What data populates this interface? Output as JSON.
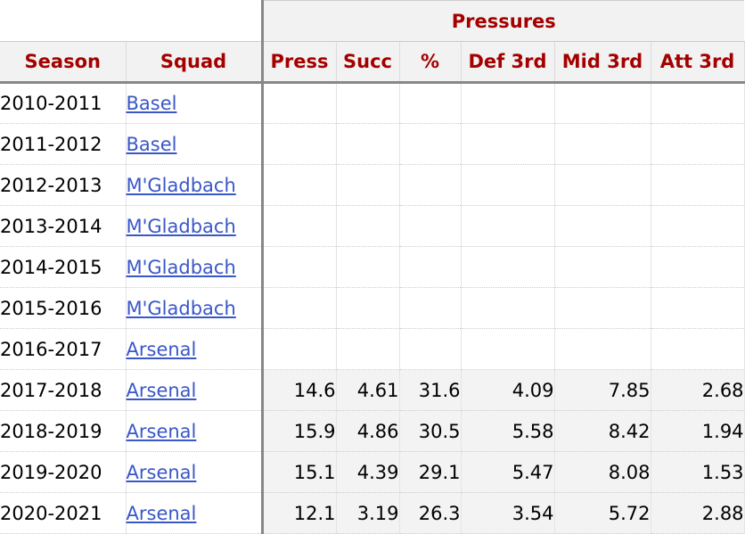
{
  "group_header": "Pressures",
  "columns": {
    "season": "Season",
    "squad": "Squad",
    "press": "Press",
    "succ": "Succ",
    "pct": "%",
    "def3": "Def 3rd",
    "mid3": "Mid 3rd",
    "att3": "Att 3rd"
  },
  "rows": [
    {
      "season": "2010-2011",
      "squad": "Basel",
      "press": "",
      "succ": "",
      "pct": "",
      "def3": "",
      "mid3": "",
      "att3": ""
    },
    {
      "season": "2011-2012",
      "squad": "Basel",
      "press": "",
      "succ": "",
      "pct": "",
      "def3": "",
      "mid3": "",
      "att3": ""
    },
    {
      "season": "2012-2013",
      "squad": "M'Gladbach",
      "press": "",
      "succ": "",
      "pct": "",
      "def3": "",
      "mid3": "",
      "att3": ""
    },
    {
      "season": "2013-2014",
      "squad": "M'Gladbach",
      "press": "",
      "succ": "",
      "pct": "",
      "def3": "",
      "mid3": "",
      "att3": ""
    },
    {
      "season": "2014-2015",
      "squad": "M'Gladbach",
      "press": "",
      "succ": "",
      "pct": "",
      "def3": "",
      "mid3": "",
      "att3": ""
    },
    {
      "season": "2015-2016",
      "squad": "M'Gladbach",
      "press": "",
      "succ": "",
      "pct": "",
      "def3": "",
      "mid3": "",
      "att3": ""
    },
    {
      "season": "2016-2017",
      "squad": "Arsenal",
      "press": "",
      "succ": "",
      "pct": "",
      "def3": "",
      "mid3": "",
      "att3": ""
    },
    {
      "season": "2017-2018",
      "squad": "Arsenal",
      "press": "14.6",
      "succ": "4.61",
      "pct": "31.6",
      "def3": "4.09",
      "mid3": "7.85",
      "att3": "2.68"
    },
    {
      "season": "2018-2019",
      "squad": "Arsenal",
      "press": "15.9",
      "succ": "4.86",
      "pct": "30.5",
      "def3": "5.58",
      "mid3": "8.42",
      "att3": "1.94"
    },
    {
      "season": "2019-2020",
      "squad": "Arsenal",
      "press": "15.1",
      "succ": "4.39",
      "pct": "29.1",
      "def3": "5.47",
      "mid3": "8.08",
      "att3": "1.53"
    },
    {
      "season": "2020-2021",
      "squad": "Arsenal",
      "press": "12.1",
      "succ": "3.19",
      "pct": "26.3",
      "def3": "3.54",
      "mid3": "5.72",
      "att3": "2.88"
    }
  ],
  "colors": {
    "header_text": "#a50000",
    "link": "#3957c8",
    "header_bg": "#f2f2f2",
    "shaded_bg": "#f3f3f3"
  }
}
